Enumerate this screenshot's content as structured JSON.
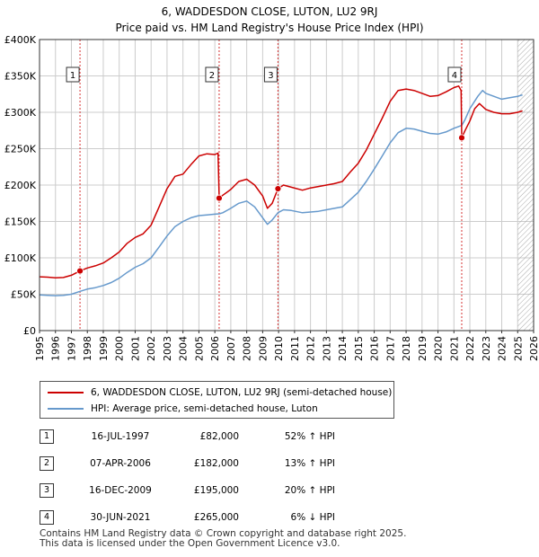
{
  "title": {
    "line1": "6, WADDESDON CLOSE, LUTON, LU2 9RJ",
    "line2": "Price paid vs. HM Land Registry's House Price Index (HPI)"
  },
  "colors": {
    "price_line": "#cc0000",
    "hpi_line": "#6699cc",
    "marker_fill": "#cc0000",
    "grid": "#cccccc",
    "future_hatch": "#aaaaaa"
  },
  "chart_data": {
    "type": "line",
    "xlim": [
      1995,
      2026
    ],
    "ylim": [
      0,
      400000
    ],
    "x_ticks": [
      "1995",
      "1996",
      "1997",
      "1998",
      "1999",
      "2000",
      "2001",
      "2002",
      "2003",
      "2004",
      "2005",
      "2006",
      "2007",
      "2008",
      "2009",
      "2010",
      "2011",
      "2012",
      "2013",
      "2014",
      "2015",
      "2016",
      "2017",
      "2018",
      "2019",
      "2020",
      "2021",
      "2022",
      "2023",
      "2024",
      "2025",
      "2026"
    ],
    "y_ticks": [
      {
        "value": 0,
        "label": "£0"
      },
      {
        "value": 50000,
        "label": "£50K"
      },
      {
        "value": 100000,
        "label": "£100K"
      },
      {
        "value": 150000,
        "label": "£150K"
      },
      {
        "value": 200000,
        "label": "£200K"
      },
      {
        "value": 250000,
        "label": "£250K"
      },
      {
        "value": 300000,
        "label": "£300K"
      },
      {
        "value": 350000,
        "label": "£350K"
      },
      {
        "value": 400000,
        "label": "£400K"
      }
    ],
    "grid": true,
    "future_region_start": 2025.0,
    "series": [
      {
        "name": "6, WADDESDON CLOSE, LUTON, LU2 9RJ (semi-detached house)",
        "color": "#cc0000",
        "points": [
          [
            1995.0,
            74000
          ],
          [
            1995.5,
            73500
          ],
          [
            1996.0,
            72500
          ],
          [
            1996.5,
            73000
          ],
          [
            1997.0,
            76000
          ],
          [
            1997.54,
            82000
          ],
          [
            1998.0,
            86000
          ],
          [
            1998.5,
            89000
          ],
          [
            1999.0,
            93000
          ],
          [
            1999.5,
            100000
          ],
          [
            2000.0,
            108000
          ],
          [
            2000.5,
            120000
          ],
          [
            2001.0,
            128000
          ],
          [
            2001.5,
            133000
          ],
          [
            2002.0,
            145000
          ],
          [
            2002.5,
            170000
          ],
          [
            2003.0,
            195000
          ],
          [
            2003.5,
            212000
          ],
          [
            2004.0,
            215000
          ],
          [
            2004.5,
            228000
          ],
          [
            2005.0,
            240000
          ],
          [
            2005.5,
            243000
          ],
          [
            2006.0,
            242000
          ],
          [
            2006.2,
            244000
          ],
          [
            2006.27,
            182000
          ],
          [
            2006.5,
            186000
          ],
          [
            2007.0,
            194000
          ],
          [
            2007.5,
            205000
          ],
          [
            2008.0,
            208000
          ],
          [
            2008.5,
            200000
          ],
          [
            2009.0,
            185000
          ],
          [
            2009.3,
            168000
          ],
          [
            2009.6,
            175000
          ],
          [
            2009.96,
            195000
          ],
          [
            2010.3,
            200000
          ],
          [
            2010.8,
            197000
          ],
          [
            2011.5,
            193000
          ],
          [
            2012.0,
            196000
          ],
          [
            2012.5,
            198000
          ],
          [
            2013.0,
            200000
          ],
          [
            2013.5,
            202000
          ],
          [
            2014.0,
            205000
          ],
          [
            2014.5,
            218000
          ],
          [
            2015.0,
            230000
          ],
          [
            2015.5,
            248000
          ],
          [
            2016.0,
            270000
          ],
          [
            2016.5,
            292000
          ],
          [
            2017.0,
            315000
          ],
          [
            2017.5,
            330000
          ],
          [
            2018.0,
            332000
          ],
          [
            2018.5,
            330000
          ],
          [
            2019.0,
            326000
          ],
          [
            2019.5,
            322000
          ],
          [
            2020.0,
            323000
          ],
          [
            2020.5,
            328000
          ],
          [
            2021.0,
            334000
          ],
          [
            2021.3,
            336000
          ],
          [
            2021.45,
            330000
          ],
          [
            2021.49,
            265000
          ],
          [
            2021.7,
            275000
          ],
          [
            2022.0,
            288000
          ],
          [
            2022.3,
            305000
          ],
          [
            2022.6,
            312000
          ],
          [
            2023.0,
            304000
          ],
          [
            2023.5,
            300000
          ],
          [
            2024.0,
            298000
          ],
          [
            2024.5,
            298000
          ],
          [
            2025.0,
            300000
          ],
          [
            2025.3,
            302000
          ]
        ]
      },
      {
        "name": "HPI: Average price, semi-detached house, Luton",
        "color": "#6699cc",
        "points": [
          [
            1995.0,
            49000
          ],
          [
            1995.5,
            48500
          ],
          [
            1996.0,
            48000
          ],
          [
            1996.5,
            48500
          ],
          [
            1997.0,
            50000
          ],
          [
            1997.54,
            54000
          ],
          [
            1998.0,
            57000
          ],
          [
            1998.5,
            59000
          ],
          [
            1999.0,
            62000
          ],
          [
            1999.5,
            66000
          ],
          [
            2000.0,
            72000
          ],
          [
            2000.5,
            80000
          ],
          [
            2001.0,
            87000
          ],
          [
            2001.5,
            92000
          ],
          [
            2002.0,
            100000
          ],
          [
            2002.5,
            115000
          ],
          [
            2003.0,
            130000
          ],
          [
            2003.5,
            143000
          ],
          [
            2004.0,
            150000
          ],
          [
            2004.5,
            155000
          ],
          [
            2005.0,
            158000
          ],
          [
            2005.5,
            159000
          ],
          [
            2006.0,
            160000
          ],
          [
            2006.27,
            160500
          ],
          [
            2006.5,
            162000
          ],
          [
            2007.0,
            168000
          ],
          [
            2007.5,
            175000
          ],
          [
            2008.0,
            178000
          ],
          [
            2008.5,
            170000
          ],
          [
            2009.0,
            155000
          ],
          [
            2009.3,
            146000
          ],
          [
            2009.6,
            152000
          ],
          [
            2009.96,
            162000
          ],
          [
            2010.3,
            166000
          ],
          [
            2010.8,
            165000
          ],
          [
            2011.5,
            162000
          ],
          [
            2012.0,
            163000
          ],
          [
            2012.5,
            164000
          ],
          [
            2013.0,
            166000
          ],
          [
            2013.5,
            168000
          ],
          [
            2014.0,
            170000
          ],
          [
            2014.5,
            180000
          ],
          [
            2015.0,
            190000
          ],
          [
            2015.5,
            205000
          ],
          [
            2016.0,
            222000
          ],
          [
            2016.5,
            240000
          ],
          [
            2017.0,
            258000
          ],
          [
            2017.5,
            272000
          ],
          [
            2018.0,
            278000
          ],
          [
            2018.5,
            277000
          ],
          [
            2019.0,
            274000
          ],
          [
            2019.5,
            271000
          ],
          [
            2020.0,
            270000
          ],
          [
            2020.5,
            273000
          ],
          [
            2021.0,
            278000
          ],
          [
            2021.49,
            282000
          ],
          [
            2021.7,
            290000
          ],
          [
            2022.0,
            305000
          ],
          [
            2022.5,
            322000
          ],
          [
            2022.8,
            330000
          ],
          [
            2023.0,
            326000
          ],
          [
            2023.5,
            322000
          ],
          [
            2024.0,
            318000
          ],
          [
            2024.5,
            320000
          ],
          [
            2025.0,
            322000
          ],
          [
            2025.3,
            324000
          ]
        ]
      }
    ],
    "sales": [
      {
        "id": "1",
        "x": 1997.54,
        "price": 82000
      },
      {
        "id": "2",
        "x": 2006.27,
        "price": 182000
      },
      {
        "id": "3",
        "x": 2009.96,
        "price": 195000
      },
      {
        "id": "4",
        "x": 2021.49,
        "price": 265000
      }
    ]
  },
  "legend": {
    "items": [
      {
        "label": "6, WADDESDON CLOSE, LUTON, LU2 9RJ (semi-detached house)",
        "color": "#cc0000"
      },
      {
        "label": "HPI: Average price, semi-detached house, Luton",
        "color": "#6699cc"
      }
    ]
  },
  "sales_table": [
    {
      "id": "1",
      "date": "16-JUL-1997",
      "price": "£82,000",
      "hpi": "52% ↑ HPI"
    },
    {
      "id": "2",
      "date": "07-APR-2006",
      "price": "£182,000",
      "hpi": "13% ↑ HPI"
    },
    {
      "id": "3",
      "date": "16-DEC-2009",
      "price": "£195,000",
      "hpi": "20% ↑ HPI"
    },
    {
      "id": "4",
      "date": "30-JUN-2021",
      "price": "£265,000",
      "hpi": "6% ↓ HPI"
    }
  ],
  "footer": {
    "line1": "Contains HM Land Registry data © Crown copyright and database right 2025.",
    "line2": "This data is licensed under the Open Government Licence v3.0."
  }
}
